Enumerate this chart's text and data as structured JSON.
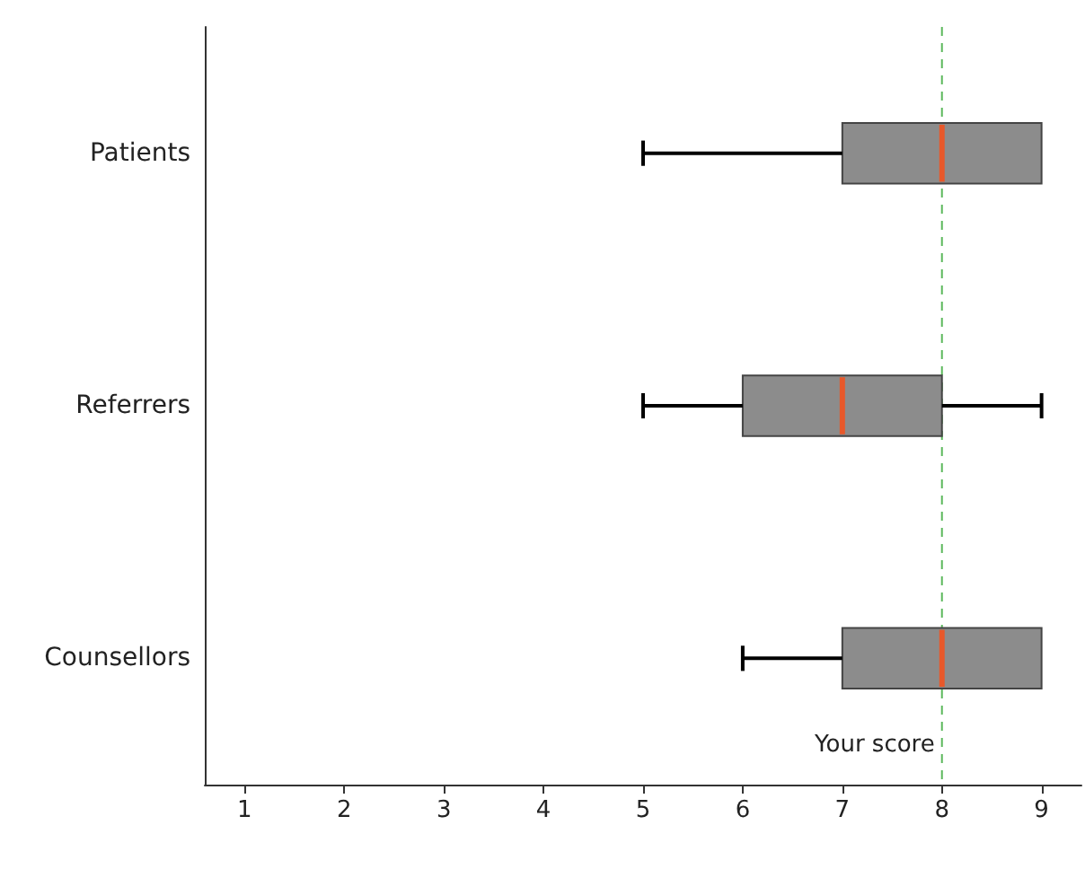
{
  "chart_data": {
    "type": "box",
    "orientation": "horizontal",
    "categories": [
      "Patients",
      "Referrers",
      "Counsellors"
    ],
    "series": [
      {
        "color": "#8c8c8c",
        "boxes": [
          {
            "low": 5,
            "q1": 7,
            "median": 8,
            "q3": 9,
            "high": 9
          },
          {
            "low": 5,
            "q1": 6,
            "median": 7,
            "q3": 8,
            "high": 9
          },
          {
            "low": 6,
            "q1": 7,
            "median": 8,
            "q3": 9,
            "high": 9
          }
        ]
      }
    ],
    "xlim": [
      0.6,
      9.4
    ],
    "xticks": [
      1,
      2,
      3,
      4,
      5,
      6,
      7,
      8,
      9
    ],
    "grid": false,
    "ref_lines": [
      {
        "axis": "x",
        "value": 8,
        "label": "Your score",
        "color": "#5cb85c",
        "line_style": "dashed"
      }
    ]
  }
}
